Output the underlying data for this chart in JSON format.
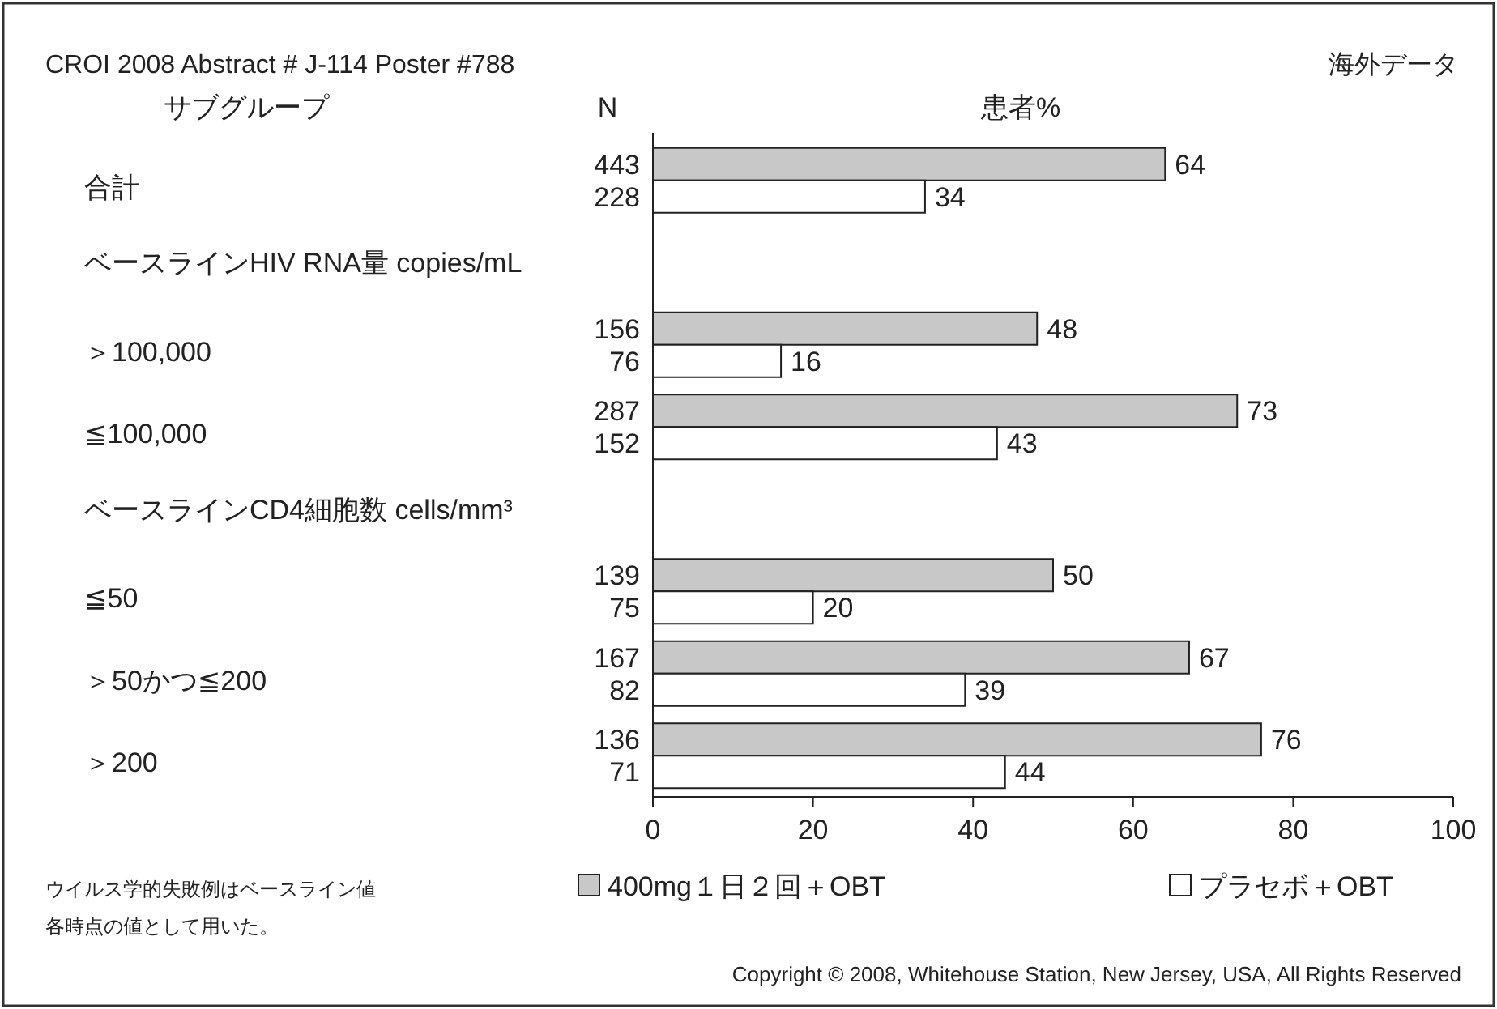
{
  "chart_data": {
    "type": "bar",
    "orientation": "horizontal",
    "title": "CROI 2008 Abstract # J-114 Poster #788",
    "subtitle": "海外データ",
    "xlabel": "患者%",
    "categories": [
      "合計",
      "ベースラインHIV RNA量 copies/mL",
      "＞100,000",
      "≦100,000",
      "ベースラインCD4細胞数 cells/mm³",
      "≦50",
      "＞50かつ≦200",
      "＞200"
    ],
    "series": [
      {
        "name": "400mg１日２回＋OBT",
        "color": "#c8c8c8",
        "values": [
          64,
          null,
          48,
          73,
          null,
          50,
          67,
          76
        ]
      },
      {
        "name": "プラセボ＋OBT",
        "color": "#ffffff",
        "values": [
          34,
          null,
          16,
          43,
          null,
          20,
          39,
          44
        ]
      }
    ],
    "xlim": [
      0,
      100
    ],
    "xticks": [
      0,
      20,
      40,
      60,
      80,
      100
    ],
    "data_labels": true,
    "legend": "bottom",
    "annotations": [
      "サブグループ",
      "N",
      "ウイルス学的失敗例はベースライン値",
      "各時点の値として用いた。",
      "Copyright © 2008, Whitehouse Station, New Jersey, USA, All Rights Reserved",
      "443",
      "228",
      "156",
      "76",
      "287",
      "152",
      "139",
      "75",
      "167",
      "82",
      "136",
      "71"
    ]
  }
}
